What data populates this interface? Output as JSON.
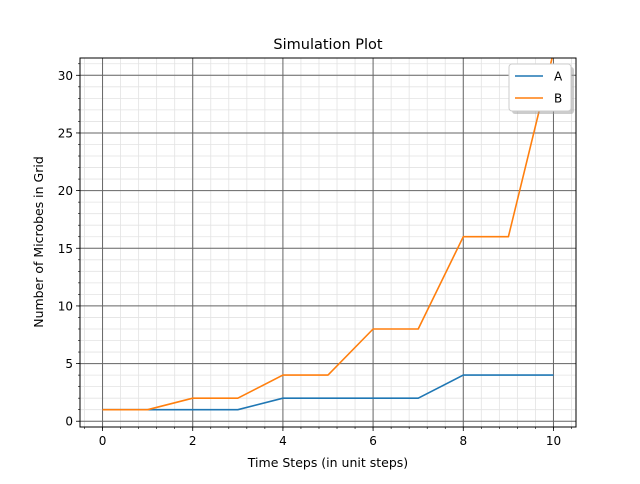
{
  "chart_data": {
    "type": "line",
    "title": "Simulation Plot",
    "xlabel": "Time Steps (in unit steps)",
    "ylabel": "Number of Microbes in Grid",
    "xlim": [
      -0.5,
      10.5
    ],
    "ylim": [
      -0.5,
      31.5
    ],
    "x_ticks": [
      0,
      2,
      4,
      6,
      8,
      10
    ],
    "x_tick_labels": [
      "0",
      "2",
      "4",
      "6",
      "8",
      "10"
    ],
    "y_ticks": [
      0,
      5,
      10,
      15,
      20,
      25,
      30
    ],
    "y_tick_labels": [
      "0",
      "5",
      "10",
      "15",
      "20",
      "25",
      "30"
    ],
    "grid": true,
    "minor_grid": true,
    "legend_position": "top-right",
    "x": [
      0,
      1,
      2,
      3,
      4,
      5,
      6,
      7,
      8,
      9,
      10
    ],
    "series": [
      {
        "name": "A",
        "color": "#1f77b4",
        "values": [
          1,
          1,
          1,
          1,
          2,
          2,
          2,
          2,
          4,
          4,
          4
        ]
      },
      {
        "name": "B",
        "color": "#ff7f0e",
        "values": [
          1,
          1,
          2,
          2,
          4,
          4,
          8,
          8,
          16,
          16,
          32
        ]
      }
    ]
  }
}
